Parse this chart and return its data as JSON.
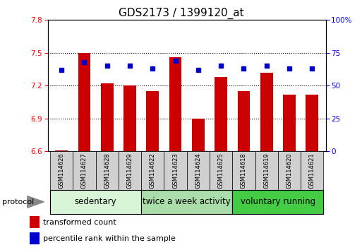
{
  "title": "GDS2173 / 1399120_at",
  "categories": [
    "GSM114626",
    "GSM114627",
    "GSM114628",
    "GSM114629",
    "GSM114622",
    "GSM114623",
    "GSM114624",
    "GSM114625",
    "GSM114618",
    "GSM114619",
    "GSM114620",
    "GSM114621"
  ],
  "bar_values": [
    6.61,
    7.5,
    7.22,
    7.2,
    7.15,
    7.46,
    6.9,
    7.28,
    7.15,
    7.32,
    7.12,
    7.12
  ],
  "percentile_values": [
    62,
    68,
    65,
    65,
    63,
    69,
    62,
    65,
    63,
    65,
    63,
    63
  ],
  "ylim_left": [
    6.6,
    7.8
  ],
  "ylim_right": [
    0,
    100
  ],
  "yticks_left": [
    6.6,
    6.9,
    7.2,
    7.5,
    7.8
  ],
  "yticks_right": [
    0,
    25,
    50,
    75,
    100
  ],
  "bar_color": "#cc0000",
  "dot_color": "#0000cc",
  "protocol_groups": [
    {
      "label": "sedentary",
      "start": 0,
      "end": 4,
      "color": "#d8f5d8"
    },
    {
      "label": "twice a week activity",
      "start": 4,
      "end": 8,
      "color": "#aaddaa"
    },
    {
      "label": "voluntary running",
      "start": 8,
      "end": 12,
      "color": "#44cc44"
    }
  ],
  "protocol_label": "protocol",
  "legend_bar_label": "transformed count",
  "legend_dot_label": "percentile rank within the sample",
  "title_fontsize": 11,
  "tick_fontsize": 7.5,
  "cat_fontsize": 6,
  "proto_fontsize": 8.5
}
